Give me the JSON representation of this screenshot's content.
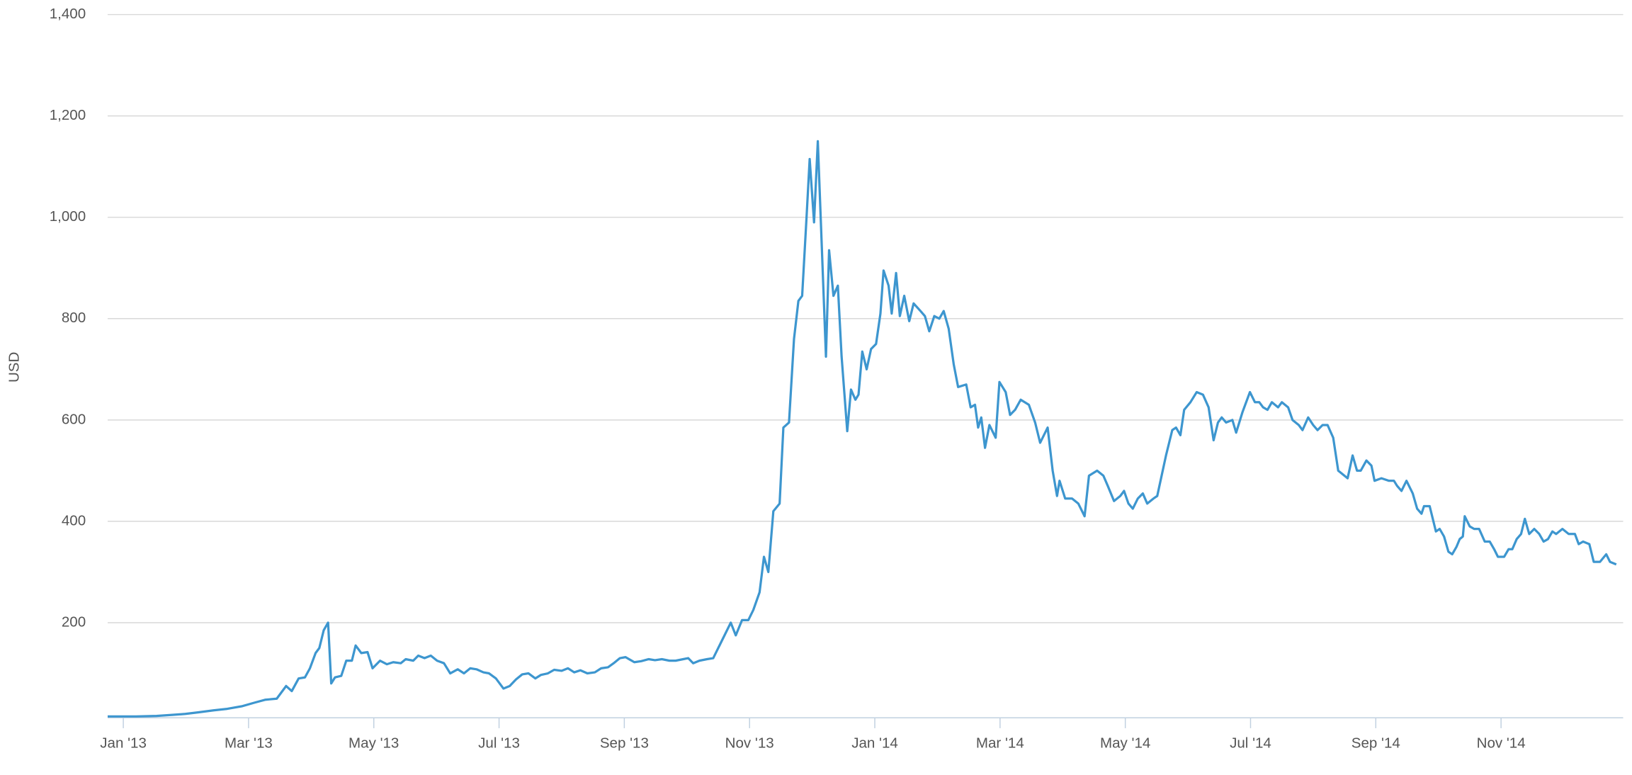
{
  "chart_data": {
    "type": "line",
    "y_label": "USD",
    "color": "#3d96cf",
    "grid": true,
    "xlim": [
      -0.25,
      23.95
    ],
    "xticks": [
      {
        "value": 0,
        "label": "Jan '13"
      },
      {
        "value": 2,
        "label": "Mar '13"
      },
      {
        "value": 4,
        "label": "May '13"
      },
      {
        "value": 6,
        "label": "Jul '13"
      },
      {
        "value": 8,
        "label": "Sep '13"
      },
      {
        "value": 10,
        "label": "Nov '13"
      },
      {
        "value": 12,
        "label": "Jan '14"
      },
      {
        "value": 14,
        "label": "Mar '14"
      },
      {
        "value": 16,
        "label": "May '14"
      },
      {
        "value": 18,
        "label": "Jul '14"
      },
      {
        "value": 20,
        "label": "Sep '14"
      },
      {
        "value": 22,
        "label": "Nov '14"
      }
    ],
    "ylim": [
      0,
      1400
    ],
    "yticks": [
      200,
      400,
      600,
      800,
      {
        "value": 1000,
        "label": "1,000"
      },
      {
        "value": 1200,
        "label": "1,200"
      },
      {
        "value": 1400,
        "label": "1,400"
      }
    ],
    "x": [
      -0.25,
      0.2,
      0.53,
      0.78,
      0.99,
      1.19,
      1.44,
      1.66,
      1.89,
      2.09,
      2.27,
      2.45,
      2.6,
      2.69,
      2.8,
      2.9,
      2.98,
      3.07,
      3.13,
      3.2,
      3.27,
      3.32,
      3.38,
      3.48,
      3.56,
      3.65,
      3.71,
      3.8,
      3.9,
      3.98,
      4.1,
      4.21,
      4.31,
      4.43,
      4.51,
      4.63,
      4.71,
      4.81,
      4.91,
      5.01,
      5.12,
      5.22,
      5.34,
      5.44,
      5.54,
      5.64,
      5.75,
      5.84,
      5.95,
      6.07,
      6.17,
      6.27,
      6.37,
      6.47,
      6.58,
      6.67,
      6.78,
      6.88,
      7.0,
      7.1,
      7.2,
      7.3,
      7.41,
      7.53,
      7.63,
      7.74,
      7.83,
      7.93,
      8.02,
      8.16,
      8.27,
      8.39,
      8.49,
      8.6,
      8.72,
      8.82,
      8.94,
      9.02,
      9.1,
      9.2,
      9.32,
      9.42,
      9.48,
      9.6,
      9.7,
      9.78,
      9.88,
      9.98,
      10.06,
      10.16,
      10.23,
      10.3,
      10.38,
      10.48,
      10.54,
      10.63,
      10.71,
      10.78,
      10.84,
      10.91,
      10.96,
      11.03,
      11.09,
      11.22,
      11.27,
      11.34,
      11.41,
      11.47,
      11.56,
      11.62,
      11.69,
      11.74,
      11.8,
      11.87,
      11.94,
      12.02,
      12.09,
      12.14,
      12.22,
      12.27,
      12.34,
      12.4,
      12.47,
      12.55,
      12.62,
      12.73,
      12.8,
      12.87,
      12.95,
      13.03,
      13.1,
      13.18,
      13.26,
      13.33,
      13.46,
      13.53,
      13.6,
      13.65,
      13.7,
      13.76,
      13.83,
      13.93,
      13.99,
      14.09,
      14.16,
      14.24,
      14.33,
      14.46,
      14.56,
      14.64,
      14.76,
      14.84,
      14.91,
      14.95,
      15.04,
      15.15,
      15.25,
      15.35,
      15.42,
      15.55,
      15.65,
      15.72,
      15.82,
      15.92,
      15.98,
      16.05,
      16.12,
      16.2,
      16.28,
      16.35,
      16.45,
      16.51,
      16.58,
      16.65,
      16.75,
      16.81,
      16.88,
      16.94,
      17.04,
      17.14,
      17.24,
      17.33,
      17.41,
      17.48,
      17.54,
      17.61,
      17.71,
      17.77,
      17.87,
      17.99,
      18.07,
      18.14,
      18.2,
      18.27,
      18.34,
      18.44,
      18.5,
      18.6,
      18.67,
      18.77,
      18.83,
      18.92,
      19.0,
      19.07,
      19.15,
      19.23,
      19.32,
      19.4,
      19.55,
      19.63,
      19.7,
      19.76,
      19.85,
      19.93,
      19.98,
      20.09,
      20.21,
      20.29,
      20.34,
      20.41,
      20.49,
      20.59,
      20.66,
      20.73,
      20.77,
      20.86,
      20.96,
      21.02,
      21.09,
      21.16,
      21.22,
      21.29,
      21.34,
      21.39,
      21.42,
      21.5,
      21.57,
      21.65,
      21.74,
      21.82,
      21.89,
      21.95,
      22.05,
      22.12,
      22.18,
      22.25,
      22.32,
      22.38,
      22.45,
      22.53,
      22.61,
      22.68,
      22.75,
      22.82,
      22.88,
      22.98,
      23.08,
      23.18,
      23.24,
      23.31,
      23.41,
      23.48,
      23.58,
      23.68,
      23.74,
      23.84
    ],
    "values": [
      15,
      15,
      16,
      18,
      20,
      23,
      27,
      30,
      35,
      42,
      48,
      50,
      75,
      65,
      90,
      92,
      110,
      140,
      150,
      185,
      200,
      80,
      92,
      95,
      125,
      125,
      155,
      140,
      142,
      110,
      125,
      118,
      122,
      120,
      128,
      125,
      135,
      130,
      135,
      125,
      120,
      100,
      108,
      100,
      110,
      108,
      102,
      100,
      90,
      70,
      75,
      88,
      98,
      100,
      90,
      97,
      100,
      107,
      105,
      110,
      102,
      106,
      100,
      102,
      110,
      112,
      120,
      130,
      132,
      122,
      124,
      128,
      126,
      128,
      125,
      125,
      128,
      130,
      120,
      125,
      128,
      130,
      145,
      175,
      200,
      175,
      205,
      205,
      225,
      260,
      330,
      300,
      420,
      435,
      585,
      595,
      760,
      835,
      845,
      1000,
      1115,
      990,
      1150,
      725,
      935,
      845,
      865,
      725,
      578,
      660,
      640,
      650,
      735,
      700,
      740,
      750,
      810,
      895,
      865,
      810,
      890,
      805,
      845,
      795,
      830,
      815,
      805,
      775,
      805,
      800,
      815,
      780,
      710,
      665,
      670,
      625,
      630,
      585,
      605,
      545,
      590,
      565,
      675,
      655,
      610,
      620,
      640,
      630,
      595,
      555,
      585,
      500,
      450,
      480,
      445,
      445,
      435,
      410,
      490,
      500,
      490,
      470,
      440,
      450,
      460,
      435,
      425,
      445,
      455,
      435,
      445,
      450,
      490,
      530,
      580,
      585,
      570,
      620,
      635,
      655,
      650,
      625,
      560,
      595,
      605,
      595,
      600,
      575,
      615,
      655,
      635,
      635,
      625,
      620,
      635,
      625,
      635,
      625,
      600,
      590,
      580,
      605,
      590,
      580,
      590,
      590,
      565,
      500,
      485,
      530,
      500,
      500,
      520,
      510,
      480,
      485,
      480,
      480,
      470,
      460,
      480,
      455,
      425,
      415,
      430,
      430,
      380,
      385,
      370,
      340,
      335,
      350,
      365,
      370,
      410,
      390,
      385,
      385,
      360,
      360,
      345,
      330,
      330,
      345,
      345,
      365,
      375,
      405,
      375,
      385,
      375,
      360,
      365,
      380,
      375,
      385,
      375,
      375,
      355,
      360,
      355,
      320,
      320,
      335,
      320,
      315
    ]
  }
}
